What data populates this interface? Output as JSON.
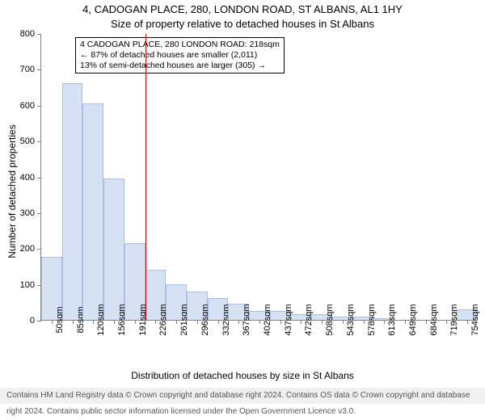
{
  "title_line1": "4, CADOGAN PLACE, 280, LONDON ROAD, ST ALBANS, AL1 1HY",
  "title_line2": "Size of property relative to detached houses in St Albans",
  "ylabel": "Number of detached properties",
  "xlabel": "Distribution of detached houses by size in St Albans",
  "footer": "Contains HM Land Registry data © Crown copyright and database right 2024. Contains OS data © Crown copyright and database right 2024. Contains public sector information licensed under the Open Government Licence v3.0.",
  "chart": {
    "type": "histogram",
    "background_color": "#ffffff",
    "axis_color": "#808080",
    "bar_fill": "#d6e2f3",
    "bar_stroke": "#a9c0e3",
    "vline_color": "#cc0000",
    "ylim": [
      0,
      800
    ],
    "ytick_step": 100,
    "categories": [
      "50sqm",
      "85sqm",
      "120sqm",
      "156sqm",
      "191sqm",
      "226sqm",
      "261sqm",
      "296sqm",
      "332sqm",
      "367sqm",
      "402sqm",
      "437sqm",
      "472sqm",
      "508sqm",
      "543sqm",
      "578sqm",
      "613sqm",
      "649sqm",
      "684sqm",
      "719sqm",
      "754sqm"
    ],
    "values": [
      175,
      660,
      605,
      395,
      215,
      140,
      100,
      80,
      62,
      45,
      25,
      25,
      15,
      15,
      10,
      10,
      5,
      0,
      0,
      0,
      30
    ],
    "vline_index": 5,
    "bar_width_ratio": 1.0
  },
  "annotation": {
    "line1": "4 CADOGAN PLACE, 280 LONDON ROAD: 218sqm",
    "line2": "← 87% of detached houses are smaller (2,011)",
    "line3": "13% of semi-detached houses are larger (305) →"
  }
}
